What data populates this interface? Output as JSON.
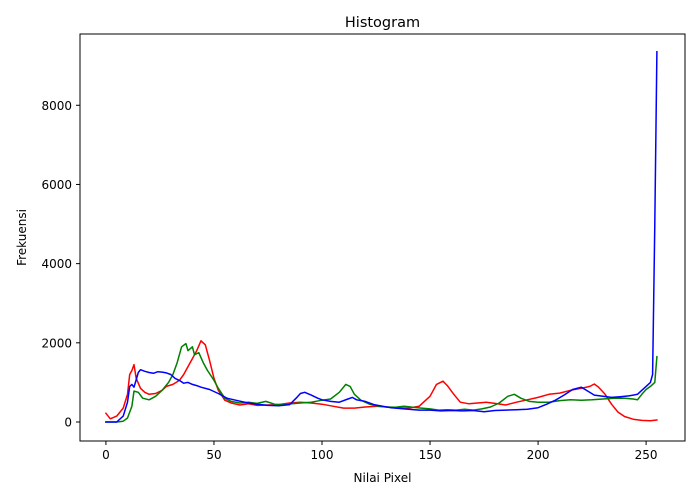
{
  "chart_data": {
    "type": "line",
    "title": "Histogram",
    "xlabel": "Nilai Pixel",
    "ylabel": "Frekuensi",
    "xlim": [
      -12,
      268
    ],
    "ylim": [
      -480,
      9800
    ],
    "x_ticks": [
      0,
      50,
      100,
      150,
      200,
      250
    ],
    "y_ticks": [
      0,
      2000,
      4000,
      6000,
      8000
    ],
    "grid": false,
    "legend": "none",
    "series": [
      {
        "color": "#ff0000",
        "points": [
          [
            0,
            220
          ],
          [
            2,
            80
          ],
          [
            5,
            150
          ],
          [
            8,
            350
          ],
          [
            10,
            700
          ],
          [
            11,
            1200
          ],
          [
            12,
            1300
          ],
          [
            13,
            1450
          ],
          [
            14,
            1100
          ],
          [
            16,
            850
          ],
          [
            18,
            750
          ],
          [
            20,
            700
          ],
          [
            23,
            720
          ],
          [
            26,
            800
          ],
          [
            28,
            900
          ],
          [
            31,
            950
          ],
          [
            34,
            1050
          ],
          [
            36,
            1200
          ],
          [
            38,
            1400
          ],
          [
            40,
            1600
          ],
          [
            42,
            1800
          ],
          [
            44,
            2050
          ],
          [
            46,
            1950
          ],
          [
            48,
            1550
          ],
          [
            50,
            1100
          ],
          [
            52,
            800
          ],
          [
            55,
            550
          ],
          [
            58,
            480
          ],
          [
            62,
            430
          ],
          [
            66,
            460
          ],
          [
            70,
            420
          ],
          [
            75,
            430
          ],
          [
            80,
            440
          ],
          [
            85,
            480
          ],
          [
            90,
            500
          ],
          [
            95,
            480
          ],
          [
            100,
            450
          ],
          [
            105,
            400
          ],
          [
            110,
            350
          ],
          [
            115,
            350
          ],
          [
            120,
            380
          ],
          [
            125,
            400
          ],
          [
            130,
            380
          ],
          [
            135,
            360
          ],
          [
            140,
            350
          ],
          [
            145,
            400
          ],
          [
            150,
            650
          ],
          [
            153,
            950
          ],
          [
            156,
            1030
          ],
          [
            158,
            920
          ],
          [
            161,
            700
          ],
          [
            164,
            500
          ],
          [
            168,
            460
          ],
          [
            172,
            480
          ],
          [
            176,
            500
          ],
          [
            180,
            470
          ],
          [
            185,
            430
          ],
          [
            190,
            500
          ],
          [
            195,
            560
          ],
          [
            200,
            620
          ],
          [
            205,
            700
          ],
          [
            210,
            730
          ],
          [
            215,
            800
          ],
          [
            220,
            850
          ],
          [
            224,
            900
          ],
          [
            226,
            960
          ],
          [
            228,
            880
          ],
          [
            231,
            700
          ],
          [
            234,
            450
          ],
          [
            237,
            250
          ],
          [
            240,
            140
          ],
          [
            244,
            70
          ],
          [
            248,
            40
          ],
          [
            252,
            30
          ],
          [
            255,
            50
          ]
        ]
      },
      {
        "color": "#008000",
        "points": [
          [
            0,
            0
          ],
          [
            5,
            0
          ],
          [
            8,
            20
          ],
          [
            10,
            100
          ],
          [
            12,
            400
          ],
          [
            13,
            780
          ],
          [
            15,
            750
          ],
          [
            17,
            600
          ],
          [
            20,
            560
          ],
          [
            23,
            650
          ],
          [
            26,
            800
          ],
          [
            29,
            1000
          ],
          [
            31,
            1200
          ],
          [
            33,
            1500
          ],
          [
            35,
            1900
          ],
          [
            37,
            1980
          ],
          [
            38,
            1800
          ],
          [
            40,
            1900
          ],
          [
            41,
            1700
          ],
          [
            43,
            1750
          ],
          [
            45,
            1500
          ],
          [
            47,
            1300
          ],
          [
            50,
            1050
          ],
          [
            52,
            850
          ],
          [
            55,
            600
          ],
          [
            58,
            520
          ],
          [
            62,
            480
          ],
          [
            66,
            500
          ],
          [
            70,
            470
          ],
          [
            74,
            520
          ],
          [
            78,
            450
          ],
          [
            82,
            440
          ],
          [
            86,
            460
          ],
          [
            90,
            480
          ],
          [
            95,
            500
          ],
          [
            100,
            550
          ],
          [
            104,
            580
          ],
          [
            108,
            750
          ],
          [
            111,
            950
          ],
          [
            113,
            900
          ],
          [
            115,
            700
          ],
          [
            118,
            550
          ],
          [
            122,
            450
          ],
          [
            126,
            400
          ],
          [
            130,
            380
          ],
          [
            134,
            370
          ],
          [
            138,
            400
          ],
          [
            142,
            370
          ],
          [
            146,
            350
          ],
          [
            150,
            330
          ],
          [
            154,
            300
          ],
          [
            158,
            310
          ],
          [
            162,
            300
          ],
          [
            166,
            320
          ],
          [
            170,
            300
          ],
          [
            174,
            330
          ],
          [
            178,
            380
          ],
          [
            182,
            480
          ],
          [
            186,
            650
          ],
          [
            189,
            700
          ],
          [
            192,
            600
          ],
          [
            196,
            520
          ],
          [
            200,
            500
          ],
          [
            205,
            500
          ],
          [
            210,
            540
          ],
          [
            215,
            560
          ],
          [
            220,
            550
          ],
          [
            225,
            560
          ],
          [
            230,
            580
          ],
          [
            235,
            600
          ],
          [
            240,
            600
          ],
          [
            244,
            580
          ],
          [
            246,
            560
          ],
          [
            248,
            700
          ],
          [
            250,
            820
          ],
          [
            252,
            900
          ],
          [
            254,
            1000
          ],
          [
            255,
            1650
          ]
        ]
      },
      {
        "color": "#0000ff",
        "points": [
          [
            0,
            0
          ],
          [
            5,
            0
          ],
          [
            8,
            150
          ],
          [
            10,
            500
          ],
          [
            11,
            900
          ],
          [
            12,
            950
          ],
          [
            13,
            880
          ],
          [
            15,
            1250
          ],
          [
            16,
            1320
          ],
          [
            18,
            1280
          ],
          [
            20,
            1250
          ],
          [
            22,
            1230
          ],
          [
            24,
            1270
          ],
          [
            26,
            1260
          ],
          [
            28,
            1240
          ],
          [
            30,
            1200
          ],
          [
            32,
            1100
          ],
          [
            34,
            1050
          ],
          [
            36,
            980
          ],
          [
            38,
            1000
          ],
          [
            40,
            950
          ],
          [
            42,
            920
          ],
          [
            44,
            880
          ],
          [
            48,
            820
          ],
          [
            52,
            720
          ],
          [
            56,
            600
          ],
          [
            60,
            550
          ],
          [
            65,
            490
          ],
          [
            70,
            450
          ],
          [
            75,
            420
          ],
          [
            80,
            410
          ],
          [
            85,
            440
          ],
          [
            88,
            600
          ],
          [
            90,
            720
          ],
          [
            92,
            750
          ],
          [
            95,
            680
          ],
          [
            98,
            600
          ],
          [
            100,
            560
          ],
          [
            104,
            520
          ],
          [
            108,
            500
          ],
          [
            112,
            580
          ],
          [
            114,
            620
          ],
          [
            116,
            560
          ],
          [
            120,
            520
          ],
          [
            124,
            440
          ],
          [
            128,
            400
          ],
          [
            132,
            360
          ],
          [
            136,
            340
          ],
          [
            140,
            320
          ],
          [
            145,
            300
          ],
          [
            150,
            300
          ],
          [
            155,
            280
          ],
          [
            160,
            290
          ],
          [
            165,
            280
          ],
          [
            170,
            290
          ],
          [
            175,
            260
          ],
          [
            180,
            290
          ],
          [
            185,
            300
          ],
          [
            190,
            310
          ],
          [
            195,
            320
          ],
          [
            200,
            360
          ],
          [
            204,
            450
          ],
          [
            208,
            550
          ],
          [
            212,
            680
          ],
          [
            216,
            820
          ],
          [
            220,
            880
          ],
          [
            223,
            780
          ],
          [
            226,
            680
          ],
          [
            230,
            650
          ],
          [
            234,
            620
          ],
          [
            238,
            640
          ],
          [
            242,
            660
          ],
          [
            246,
            700
          ],
          [
            248,
            800
          ],
          [
            250,
            900
          ],
          [
            252,
            1000
          ],
          [
            253,
            1200
          ],
          [
            254,
            5000
          ],
          [
            255,
            9350
          ]
        ]
      }
    ]
  }
}
